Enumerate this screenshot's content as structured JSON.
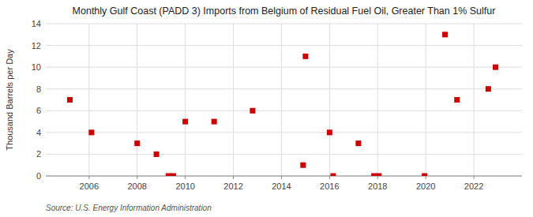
{
  "chart_data": {
    "type": "scatter",
    "title": "Monthly Gulf Coast (PADD 3) Imports from Belgium of Residual Fuel Oil, Greater Than 1% Sulfur",
    "ylabel": "Thousand Barrels per Day",
    "source": "Source: U.S. Energy Information Administration",
    "x": [
      2005.2,
      2006.1,
      2008.0,
      2008.8,
      2009.3,
      2009.5,
      2010.0,
      2011.2,
      2012.8,
      2014.9,
      2015.0,
      2016.0,
      2016.15,
      2017.2,
      2017.85,
      2018.05,
      2019.95,
      2020.8,
      2021.3,
      2022.6,
      2022.9
    ],
    "values": [
      7,
      4,
      3,
      2,
      0,
      0,
      5,
      5,
      6,
      1,
      11,
      4,
      0,
      3,
      0,
      0,
      0,
      13,
      7,
      8,
      10
    ],
    "color": "#cc0000",
    "marker": "square",
    "xlim": [
      2004.2,
      2024.0
    ],
    "ylim": [
      0,
      14
    ],
    "xticks": [
      2006,
      2008,
      2010,
      2012,
      2014,
      2016,
      2018,
      2020,
      2022
    ],
    "yticks": [
      0,
      2,
      4,
      6,
      8,
      10,
      12,
      14
    ],
    "grid": true
  }
}
